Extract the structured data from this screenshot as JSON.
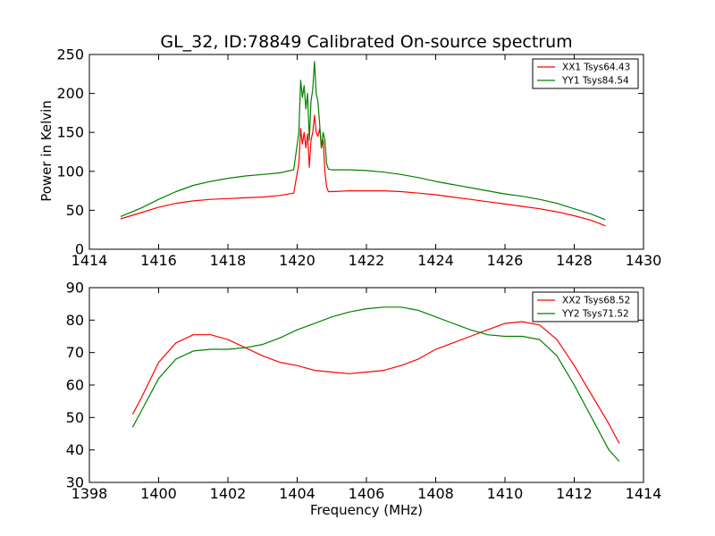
{
  "figure": {
    "title": "GL_32, ID:78849 Calibrated On-source spectrum",
    "ylabel": "Power in Kelvin",
    "xlabel": "Frequency (MHz)"
  },
  "colors": {
    "red": "#ff0000",
    "green": "#008000"
  },
  "chart_data": [
    {
      "type": "line",
      "xlim": [
        1414,
        1430
      ],
      "ylim": [
        0,
        250
      ],
      "xticks": [
        "1414",
        "1416",
        "1418",
        "1420",
        "1422",
        "1424",
        "1426",
        "1428",
        "1430"
      ],
      "yticks": [
        "0",
        "50",
        "100",
        "150",
        "200",
        "250"
      ],
      "legend_position": "top-right",
      "series": [
        {
          "name": "XX1 Tsys64.43",
          "color": "#ff0000",
          "x": [
            1414.9,
            1415.5,
            1416.0,
            1416.5,
            1417.0,
            1417.5,
            1418.0,
            1418.5,
            1419.0,
            1419.5,
            1419.9,
            1420.05,
            1420.1,
            1420.15,
            1420.2,
            1420.25,
            1420.3,
            1420.35,
            1420.4,
            1420.45,
            1420.5,
            1420.55,
            1420.6,
            1420.65,
            1420.7,
            1420.75,
            1420.8,
            1420.85,
            1420.9,
            1421.0,
            1421.5,
            1422.0,
            1422.5,
            1423.0,
            1423.5,
            1424.0,
            1424.5,
            1425.0,
            1425.5,
            1426.0,
            1426.5,
            1427.0,
            1427.5,
            1428.0,
            1428.5,
            1428.9
          ],
          "y": [
            39,
            47,
            54,
            59,
            62,
            64,
            65,
            66,
            67,
            69,
            72,
            110,
            155,
            135,
            150,
            130,
            148,
            105,
            140,
            150,
            172,
            150,
            145,
            155,
            130,
            140,
            100,
            80,
            74,
            74,
            75,
            75,
            75,
            74,
            72,
            70,
            67,
            64,
            61,
            58,
            55,
            52,
            48,
            43,
            37,
            30
          ]
        },
        {
          "name": "YY1 Tsys84.54",
          "color": "#008000",
          "x": [
            1414.9,
            1415.5,
            1416.0,
            1416.5,
            1417.0,
            1417.5,
            1418.0,
            1418.5,
            1419.0,
            1419.5,
            1419.9,
            1420.05,
            1420.1,
            1420.15,
            1420.2,
            1420.25,
            1420.3,
            1420.35,
            1420.4,
            1420.45,
            1420.5,
            1420.55,
            1420.6,
            1420.65,
            1420.7,
            1420.75,
            1420.8,
            1420.85,
            1420.9,
            1421.0,
            1421.5,
            1422.0,
            1422.5,
            1423.0,
            1423.5,
            1424.0,
            1424.5,
            1425.0,
            1425.5,
            1426.0,
            1426.5,
            1427.0,
            1427.5,
            1428.0,
            1428.5,
            1428.9
          ],
          "y": [
            42,
            53,
            64,
            74,
            82,
            87,
            91,
            94,
            96,
            98,
            102,
            150,
            217,
            195,
            210,
            180,
            200,
            140,
            190,
            205,
            241,
            200,
            190,
            160,
            130,
            150,
            140,
            110,
            103,
            102,
            102,
            101,
            99,
            96,
            92,
            87,
            83,
            79,
            75,
            71,
            68,
            64,
            59,
            52,
            45,
            38
          ]
        }
      ]
    },
    {
      "type": "line",
      "xlim": [
        1398,
        1414
      ],
      "ylim": [
        30,
        90
      ],
      "xticks": [
        "1398",
        "1400",
        "1402",
        "1404",
        "1406",
        "1408",
        "1410",
        "1412",
        "1414"
      ],
      "yticks": [
        "30",
        "40",
        "50",
        "60",
        "70",
        "80",
        "90"
      ],
      "legend_position": "top-right",
      "series": [
        {
          "name": "XX2 Tsys68.52",
          "color": "#ff0000",
          "x": [
            1399.25,
            1399.5,
            1400.0,
            1400.5,
            1401.0,
            1401.5,
            1402.0,
            1402.5,
            1403.0,
            1403.5,
            1404.0,
            1404.5,
            1405.0,
            1405.5,
            1406.0,
            1406.5,
            1407.0,
            1407.5,
            1408.0,
            1408.5,
            1409.0,
            1409.5,
            1410.0,
            1410.5,
            1411.0,
            1411.5,
            1412.0,
            1412.5,
            1413.0,
            1413.3
          ],
          "y": [
            51,
            56,
            67,
            73,
            75.5,
            75.5,
            74,
            71.5,
            69,
            67,
            66,
            64.5,
            64,
            63.5,
            64,
            64.5,
            66,
            68,
            71,
            73,
            75,
            77,
            79,
            79.5,
            78.5,
            74,
            66,
            57,
            48,
            42
          ]
        },
        {
          "name": "YY2 Tsys71.52",
          "color": "#008000",
          "x": [
            1399.25,
            1399.5,
            1400.0,
            1400.5,
            1401.0,
            1401.5,
            1402.0,
            1402.5,
            1403.0,
            1403.5,
            1404.0,
            1404.5,
            1405.0,
            1405.5,
            1406.0,
            1406.5,
            1407.0,
            1407.5,
            1408.0,
            1408.5,
            1409.0,
            1409.5,
            1410.0,
            1410.5,
            1411.0,
            1411.5,
            1412.0,
            1412.5,
            1413.0,
            1413.3
          ],
          "y": [
            47,
            52,
            62,
            68,
            70.5,
            71,
            71,
            71.5,
            72.5,
            74.5,
            77,
            79,
            81,
            82.5,
            83.5,
            84,
            84,
            83,
            81,
            79,
            77,
            75.5,
            75,
            75,
            74,
            69,
            60,
            50,
            40,
            36.5
          ]
        }
      ]
    }
  ]
}
